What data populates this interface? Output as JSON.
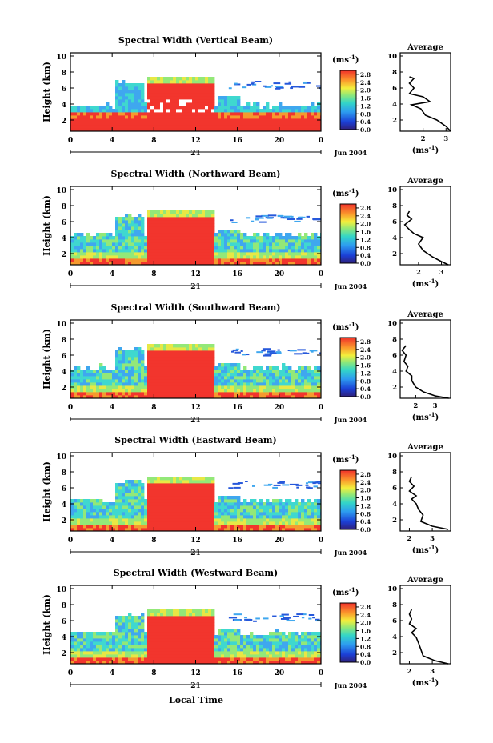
{
  "figure": {
    "xlabel": "Local Time",
    "date_label": "Jun 2004",
    "day_label": "21",
    "unit_label": "(ms",
    "unit_exp": "-1",
    "ylabel": "Height (km)",
    "avg_title": "Average"
  },
  "chart_data": [
    {
      "type": "heatmap",
      "title": "Spectral Width (Vertical Beam)",
      "x_ticks": [
        "0",
        "4",
        "8",
        "12",
        "16",
        "20",
        "0"
      ],
      "y_ticks": [
        "2",
        "4",
        "6",
        "8",
        "10"
      ],
      "xlim": [
        0,
        24
      ],
      "ylim": [
        0.6,
        10.4
      ],
      "colorbar": {
        "ticks": [
          "0.0",
          "0.4",
          "0.8",
          "1.2",
          "1.6",
          "2.0",
          "2.4",
          "2.8"
        ],
        "range": [
          0,
          3.0
        ]
      },
      "average": {
        "xlim": [
          1,
          3.2
        ],
        "x_ticks": [
          "2",
          "3"
        ],
        "y_ticks": [
          "2",
          "4",
          "6",
          "8",
          "10"
        ],
        "profile": [
          [
            3.2,
            0.6
          ],
          [
            3.0,
            1.2
          ],
          [
            2.6,
            2.0
          ],
          [
            2.1,
            2.6
          ],
          [
            1.9,
            3.4
          ],
          [
            1.5,
            3.9
          ],
          [
            2.3,
            4.3
          ],
          [
            2.0,
            4.9
          ],
          [
            1.4,
            5.3
          ],
          [
            1.6,
            6.0
          ],
          [
            1.4,
            6.6
          ],
          [
            1.6,
            7.2
          ],
          [
            1.4,
            7.4
          ]
        ]
      }
    },
    {
      "type": "heatmap",
      "title": "Spectral Width (Northward Beam)",
      "x_ticks": [
        "0",
        "4",
        "8",
        "12",
        "16",
        "20",
        "0"
      ],
      "y_ticks": [
        "2",
        "4",
        "6",
        "8",
        "10"
      ],
      "xlim": [
        0,
        24
      ],
      "ylim": [
        0.6,
        10.4
      ],
      "colorbar": {
        "ticks": [
          "0.0",
          "0.4",
          "0.8",
          "1.2",
          "1.6",
          "2.0",
          "2.4",
          "2.8"
        ],
        "range": [
          0,
          3.0
        ]
      },
      "average": {
        "xlim": [
          1.2,
          3.4
        ],
        "x_ticks": [
          "2",
          "3"
        ],
        "y_ticks": [
          "2",
          "4",
          "6",
          "8",
          "10"
        ],
        "profile": [
          [
            3.3,
            0.6
          ],
          [
            3.0,
            1.0
          ],
          [
            2.6,
            1.6
          ],
          [
            2.2,
            2.4
          ],
          [
            2.0,
            3.2
          ],
          [
            2.2,
            4.0
          ],
          [
            1.8,
            4.5
          ],
          [
            1.6,
            5.0
          ],
          [
            1.4,
            5.6
          ],
          [
            1.7,
            6.3
          ],
          [
            1.5,
            6.8
          ],
          [
            1.6,
            7.3
          ]
        ]
      }
    },
    {
      "type": "heatmap",
      "title": "Spectral Width (Southward Beam)",
      "x_ticks": [
        "0",
        "4",
        "8",
        "12",
        "16",
        "20",
        "0"
      ],
      "y_ticks": [
        "2",
        "4",
        "6",
        "8",
        "10"
      ],
      "xlim": [
        0,
        24
      ],
      "ylim": [
        0.6,
        10.4
      ],
      "colorbar": {
        "ticks": [
          "0.0",
          "0.4",
          "0.8",
          "1.2",
          "1.6",
          "2.0",
          "2.4",
          "2.8"
        ],
        "range": [
          0,
          3.0
        ]
      },
      "average": {
        "xlim": [
          1.2,
          3.8
        ],
        "x_ticks": [
          "2",
          "3"
        ],
        "y_ticks": [
          "2",
          "4",
          "6",
          "8",
          "10"
        ],
        "profile": [
          [
            3.7,
            0.6
          ],
          [
            3.0,
            0.9
          ],
          [
            2.4,
            1.4
          ],
          [
            2.0,
            2.0
          ],
          [
            1.8,
            2.8
          ],
          [
            1.8,
            3.4
          ],
          [
            1.5,
            4.0
          ],
          [
            1.6,
            4.6
          ],
          [
            1.4,
            5.2
          ],
          [
            1.5,
            6.0
          ],
          [
            1.3,
            6.6
          ],
          [
            1.5,
            7.2
          ]
        ]
      }
    },
    {
      "type": "heatmap",
      "title": "Spectral Width (Eastward Beam)",
      "x_ticks": [
        "0",
        "4",
        "8",
        "12",
        "16",
        "20",
        "0"
      ],
      "y_ticks": [
        "2",
        "4",
        "6",
        "8",
        "10"
      ],
      "xlim": [
        0,
        24
      ],
      "ylim": [
        0.6,
        10.4
      ],
      "colorbar": {
        "ticks": [
          "0.0",
          "0.4",
          "0.8",
          "1.2",
          "1.6",
          "2.0",
          "2.4",
          "2.8"
        ],
        "range": [
          0,
          3.0
        ]
      },
      "average": {
        "xlim": [
          1.6,
          3.8
        ],
        "x_ticks": [
          "2",
          "3"
        ],
        "y_ticks": [
          "2",
          "4",
          "6",
          "8",
          "10"
        ],
        "profile": [
          [
            3.7,
            0.8
          ],
          [
            3.0,
            1.2
          ],
          [
            2.5,
            1.8
          ],
          [
            2.6,
            2.6
          ],
          [
            2.4,
            3.3
          ],
          [
            2.3,
            4.0
          ],
          [
            2.1,
            4.6
          ],
          [
            2.3,
            5.0
          ],
          [
            2.0,
            5.6
          ],
          [
            2.2,
            6.2
          ],
          [
            2.0,
            6.8
          ],
          [
            2.1,
            7.4
          ]
        ]
      }
    },
    {
      "type": "heatmap",
      "title": "Spectral Width (Westward Beam)",
      "x_ticks": [
        "0",
        "4",
        "8",
        "12",
        "16",
        "20",
        "0"
      ],
      "y_ticks": [
        "2",
        "4",
        "6",
        "8",
        "10"
      ],
      "xlim": [
        0,
        24
      ],
      "ylim": [
        0.6,
        10.4
      ],
      "colorbar": {
        "ticks": [
          "0.0",
          "0.4",
          "0.8",
          "1.2",
          "1.6",
          "2.0",
          "2.4",
          "2.8"
        ],
        "range": [
          0,
          3.0
        ]
      },
      "average": {
        "xlim": [
          1.6,
          3.8
        ],
        "x_ticks": [
          "2",
          "3"
        ],
        "y_ticks": [
          "2",
          "4",
          "6",
          "8",
          "10"
        ],
        "profile": [
          [
            3.7,
            0.6
          ],
          [
            3.1,
            1.0
          ],
          [
            2.6,
            1.6
          ],
          [
            2.5,
            2.4
          ],
          [
            2.4,
            3.2
          ],
          [
            2.3,
            3.9
          ],
          [
            2.1,
            4.5
          ],
          [
            2.3,
            5.0
          ],
          [
            2.0,
            5.6
          ],
          [
            2.1,
            6.2
          ],
          [
            2.0,
            6.8
          ],
          [
            2.1,
            7.4
          ]
        ]
      }
    }
  ]
}
